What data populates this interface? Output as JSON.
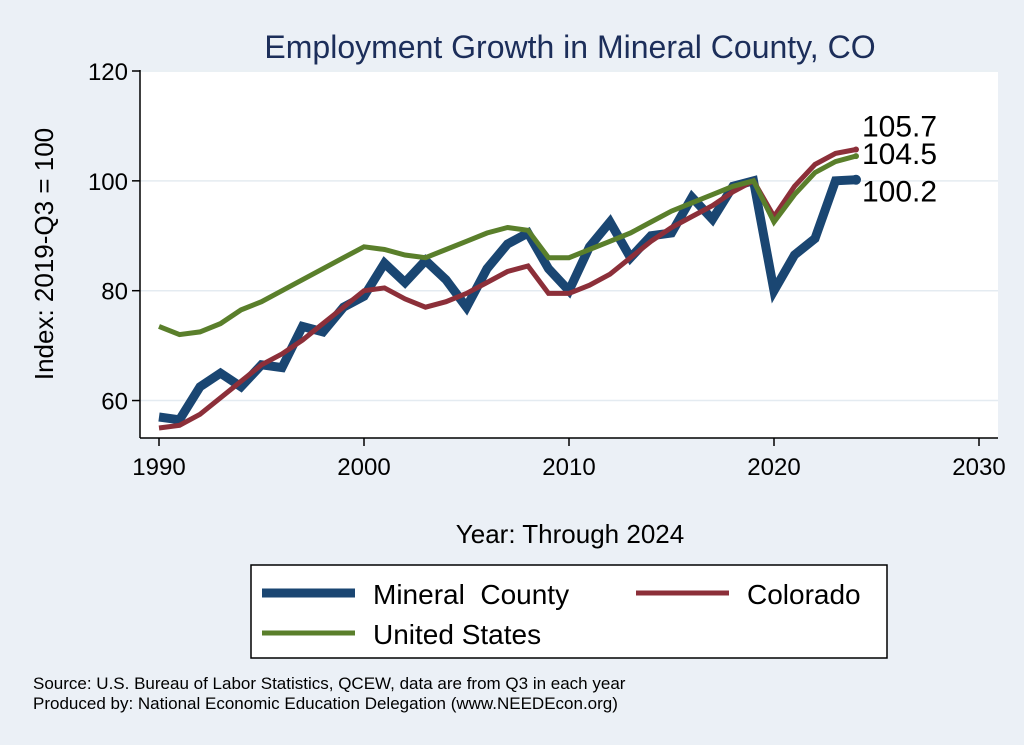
{
  "chart_data": {
    "type": "line",
    "title": "Employment Growth in Mineral County, CO",
    "xlabel": "Year: Through 2024",
    "ylabel": "Index: 2019-Q3 = 100",
    "xlim": [
      1990,
      2030
    ],
    "ylim": [
      55,
      120
    ],
    "xticks": [
      1990,
      2000,
      2010,
      2020,
      2030
    ],
    "yticks": [
      60,
      80,
      100,
      120
    ],
    "grid": true,
    "legend_position": "bottom",
    "x": [
      1990,
      1991,
      1992,
      1993,
      1994,
      1995,
      1996,
      1997,
      1998,
      1999,
      2000,
      2001,
      2002,
      2003,
      2004,
      2005,
      2006,
      2007,
      2008,
      2009,
      2010,
      2011,
      2012,
      2013,
      2014,
      2015,
      2016,
      2017,
      2018,
      2019,
      2020,
      2021,
      2022,
      2023,
      2024
    ],
    "series": [
      {
        "name": "Mineral  County",
        "color": "#1a4672",
        "width": 9,
        "end_label": "100.2",
        "values": [
          57,
          56.5,
          62.5,
          65,
          62.5,
          66.5,
          66,
          73.5,
          72.5,
          77,
          79,
          85,
          81.5,
          85.5,
          82,
          77,
          84,
          88.5,
          90.5,
          84,
          80,
          88,
          92.5,
          86,
          90,
          90.5,
          97,
          93,
          99,
          100,
          80,
          86.5,
          89.5,
          100,
          100.2
        ]
      },
      {
        "name": "Colorado",
        "color": "#8c2f39",
        "width": 5,
        "end_label": "105.7",
        "values": [
          55,
          55.5,
          57.5,
          60.5,
          63.5,
          66.5,
          68.5,
          71,
          74,
          77,
          80,
          80.5,
          78.5,
          77,
          78,
          79.5,
          81.5,
          83.5,
          84.5,
          79.5,
          79.5,
          81,
          83,
          86,
          89,
          91.5,
          93.5,
          95.5,
          98,
          100,
          93.5,
          99,
          103,
          105,
          105.7
        ]
      },
      {
        "name": "United States",
        "color": "#5a7f2b",
        "width": 5,
        "end_label": "104.5",
        "values": [
          73.5,
          72,
          72.5,
          74,
          76.5,
          78,
          80,
          82,
          84,
          86,
          88,
          87.5,
          86.5,
          86,
          87.5,
          89,
          90.5,
          91.5,
          91,
          86,
          86,
          87.5,
          89,
          90.5,
          92.5,
          94.5,
          96,
          97.5,
          99,
          100,
          92.5,
          97.5,
          101.5,
          103.5,
          104.5
        ]
      }
    ]
  },
  "source_lines": [
    "Source: U.S. Bureau of Labor Statistics, QCEW, data are from Q3 in each year",
    "Produced by: National Economic Education Delegation (www.NEEDEcon.org)"
  ]
}
